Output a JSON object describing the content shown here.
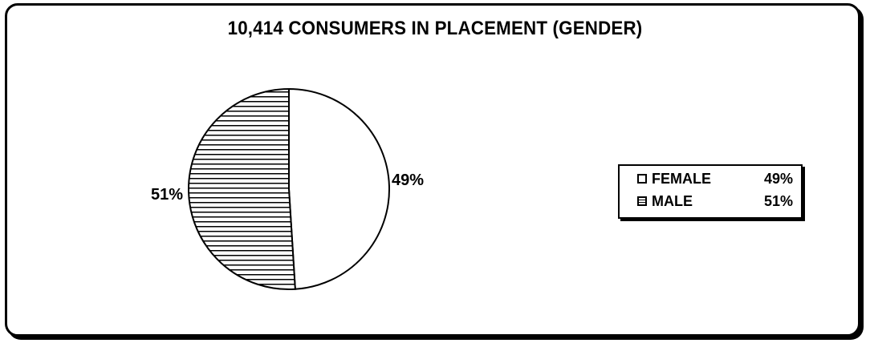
{
  "chart_data": {
    "type": "pie",
    "title": "10,414 CONSUMERS IN PLACEMENT (GENDER)",
    "categories": [
      "FEMALE",
      "MALE"
    ],
    "values": [
      49,
      51
    ],
    "value_labels": [
      "49%",
      "51%"
    ],
    "legend": [
      {
        "name": "FEMALE",
        "value": "49%",
        "pattern": "solid-white"
      },
      {
        "name": "MALE",
        "value": "51%",
        "pattern": "horizontal-hatch"
      }
    ],
    "legend_placement": "right",
    "start_angle_deg": 0,
    "direction": "clockwise"
  },
  "colors": {
    "border": "#000000",
    "fill": "#ffffff",
    "hatch": "#000000"
  }
}
